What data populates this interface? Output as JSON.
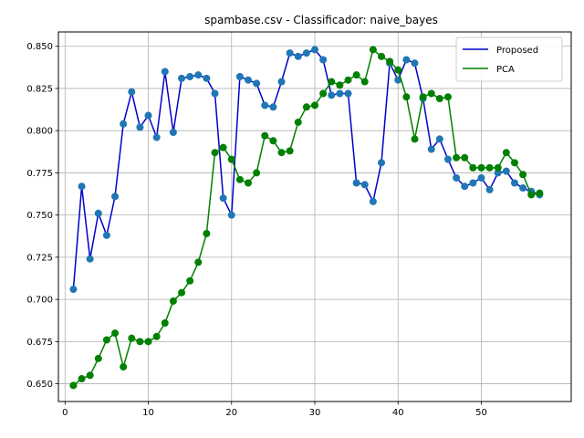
{
  "chart_data": {
    "type": "line",
    "title": "spambase.csv - Classificador: naive_bayes",
    "xlabel": "",
    "ylabel": "",
    "xlim": [
      -0.8,
      60.8
    ],
    "ylim": [
      0.6395,
      0.8585
    ],
    "x_ticks": [
      0,
      10,
      20,
      30,
      40,
      50
    ],
    "y_ticks": [
      0.65,
      0.675,
      0.7,
      0.725,
      0.75,
      0.775,
      0.8,
      0.825,
      0.85
    ],
    "y_tick_labels": [
      "0.650",
      "0.675",
      "0.700",
      "0.725",
      "0.750",
      "0.775",
      "0.800",
      "0.825",
      "0.850"
    ],
    "grid": true,
    "legend_position": "top-right",
    "x": [
      1,
      2,
      3,
      4,
      5,
      6,
      7,
      8,
      9,
      10,
      11,
      12,
      13,
      14,
      15,
      16,
      17,
      18,
      19,
      20,
      21,
      22,
      23,
      24,
      25,
      26,
      27,
      28,
      29,
      30,
      31,
      32,
      33,
      34,
      35,
      36,
      37,
      38,
      39,
      40,
      41,
      42,
      43,
      44,
      45,
      46,
      47,
      48,
      49,
      50,
      51,
      52,
      53,
      54,
      55,
      56,
      57
    ],
    "series": [
      {
        "name": "Proposed",
        "line_color": "#0000cc",
        "marker_color": "#1f77b4",
        "values": [
          0.706,
          0.767,
          0.724,
          0.751,
          0.738,
          0.761,
          0.804,
          0.823,
          0.802,
          0.809,
          0.796,
          0.835,
          0.799,
          0.831,
          0.832,
          0.833,
          0.831,
          0.822,
          0.76,
          0.75,
          0.832,
          0.83,
          0.828,
          0.815,
          0.814,
          0.829,
          0.846,
          0.844,
          0.846,
          0.848,
          0.842,
          0.821,
          0.822,
          0.822,
          0.769,
          0.768,
          0.758,
          0.781,
          0.84,
          0.83,
          0.842,
          0.84,
          0.819,
          0.789,
          0.795,
          0.783,
          0.772,
          0.767,
          0.769,
          0.772,
          0.765,
          0.775,
          0.776,
          0.769,
          0.766,
          0.764,
          0.762
        ]
      },
      {
        "name": "PCA",
        "line_color": "#008000",
        "marker_color": "#008000",
        "values": [
          0.649,
          0.653,
          0.655,
          0.665,
          0.676,
          0.68,
          0.66,
          0.677,
          0.675,
          0.675,
          0.678,
          0.686,
          0.699,
          0.704,
          0.711,
          0.722,
          0.739,
          0.787,
          0.79,
          0.783,
          0.771,
          0.769,
          0.775,
          0.797,
          0.794,
          0.787,
          0.788,
          0.805,
          0.814,
          0.815,
          0.822,
          0.829,
          0.827,
          0.83,
          0.833,
          0.829,
          0.848,
          0.844,
          0.841,
          0.836,
          0.82,
          0.795,
          0.82,
          0.822,
          0.819,
          0.82,
          0.784,
          0.784,
          0.778,
          0.778,
          0.778,
          0.778,
          0.787,
          0.781,
          0.774,
          0.762,
          0.763
        ]
      }
    ]
  }
}
